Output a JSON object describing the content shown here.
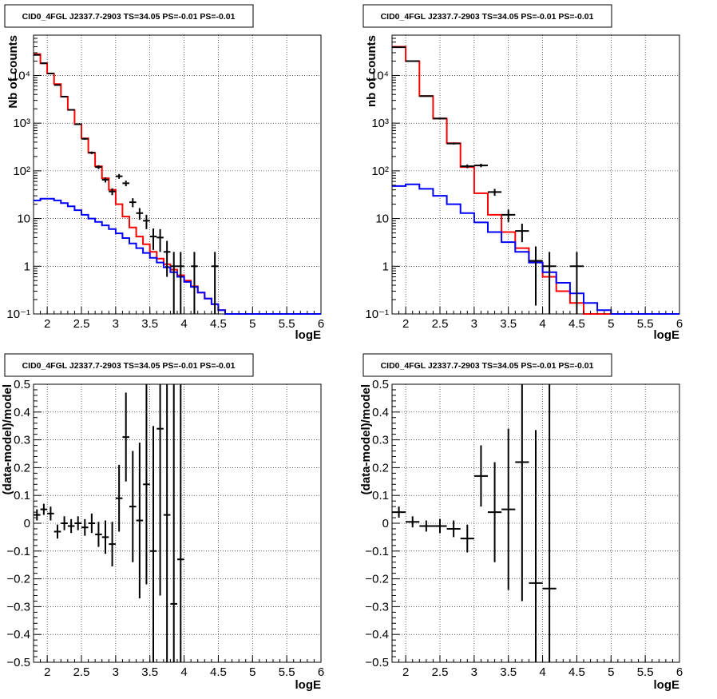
{
  "chart_data": [
    {
      "type": "histogram",
      "title": "CID0_4FGL J2337.7-2903 TS=34.05 PS=-0.01 PS=-0.01",
      "xlabel": "logE",
      "ylabel": "Nb of counts",
      "xlim": [
        1.8,
        6.0
      ],
      "ylim": [
        0.1,
        70000
      ],
      "yscale": "log",
      "grid": true,
      "x_ticks": [
        "2",
        "2.5",
        "3",
        "3.5",
        "4",
        "4.5",
        "5",
        "5.5",
        "6"
      ],
      "y_ticks": [
        "10⁻¹",
        "1",
        "10",
        "10²",
        "10³",
        "10⁴"
      ],
      "series": [
        {
          "color": "#ff0000",
          "drawstyle": "steps",
          "x_edges": [
            1.8,
            1.9,
            2.0,
            2.1,
            2.2,
            2.3,
            2.4,
            2.5,
            2.6,
            2.7,
            2.8,
            2.9,
            3.0,
            3.1,
            3.2,
            3.3,
            3.4,
            3.5,
            3.6,
            3.7,
            3.8,
            3.9,
            4.0,
            4.1,
            4.2,
            4.3,
            4.4,
            4.5,
            4.6,
            4.7,
            4.8,
            4.9,
            5.0,
            5.1,
            5.2,
            5.3,
            5.4,
            5.5,
            5.6,
            5.7,
            5.8,
            5.9,
            6.0
          ],
          "values": [
            28000,
            18000,
            11000,
            6600,
            3600,
            1900,
            950,
            480,
            240,
            125,
            70,
            40,
            20,
            11,
            6.5,
            4.2,
            2.9,
            2.0,
            1.45,
            1.1,
            0.85,
            0.65,
            0.5,
            0.38,
            0.28,
            0.21,
            0.16,
            0.12,
            0.1,
            0.1,
            0.1,
            0.1,
            0.1,
            0.1,
            0.1,
            0.1,
            0.1,
            0.1,
            0.1,
            0.1,
            0.1,
            0.1
          ]
        },
        {
          "color": "#0000ff",
          "drawstyle": "steps",
          "x_edges": [
            1.8,
            1.9,
            2.0,
            2.1,
            2.2,
            2.3,
            2.4,
            2.5,
            2.6,
            2.7,
            2.8,
            2.9,
            3.0,
            3.1,
            3.2,
            3.3,
            3.4,
            3.5,
            3.6,
            3.7,
            3.8,
            3.9,
            4.0,
            4.1,
            4.2,
            4.3,
            4.4,
            4.5,
            4.6,
            4.7,
            4.8,
            4.9,
            5.0,
            5.1,
            5.2,
            5.3,
            5.4,
            5.5,
            5.6,
            5.7,
            5.8,
            5.9,
            6.0
          ],
          "values": [
            24,
            26,
            26,
            24,
            21,
            18,
            15,
            12,
            10,
            8.5,
            7.2,
            6.0,
            4.9,
            3.9,
            3.0,
            2.4,
            1.9,
            1.5,
            1.2,
            0.95,
            0.75,
            0.6,
            0.47,
            0.37,
            0.28,
            0.21,
            0.16,
            0.12,
            0.1,
            0.1,
            0.1,
            0.1,
            0.1,
            0.1,
            0.1,
            0.1,
            0.1,
            0.1,
            0.1,
            0.1,
            0.1,
            0.1
          ]
        }
      ],
      "data_points": [
        {
          "x": 1.85,
          "y": 27000,
          "xerr": 0.05,
          "yerr": [
            164,
            164
          ]
        },
        {
          "x": 1.95,
          "y": 18000,
          "xerr": 0.05,
          "yerr": [
            134,
            134
          ]
        },
        {
          "x": 2.05,
          "y": 11000,
          "xerr": 0.05,
          "yerr": [
            105,
            105
          ]
        },
        {
          "x": 2.15,
          "y": 6300,
          "xerr": 0.05,
          "yerr": [
            79,
            79
          ]
        },
        {
          "x": 2.25,
          "y": 3600,
          "xerr": 0.05,
          "yerr": [
            60,
            60
          ]
        },
        {
          "x": 2.35,
          "y": 1900,
          "xerr": 0.05,
          "yerr": [
            44,
            44
          ]
        },
        {
          "x": 2.45,
          "y": 950,
          "xerr": 0.05,
          "yerr": [
            31,
            31
          ]
        },
        {
          "x": 2.55,
          "y": 470,
          "xerr": 0.05,
          "yerr": [
            22,
            22
          ]
        },
        {
          "x": 2.65,
          "y": 240,
          "xerr": 0.05,
          "yerr": [
            15,
            15
          ]
        },
        {
          "x": 2.75,
          "y": 120,
          "xerr": 0.05,
          "yerr": [
            11,
            11
          ]
        },
        {
          "x": 2.85,
          "y": 65,
          "xerr": 0.05,
          "yerr": [
            8,
            8
          ]
        },
        {
          "x": 2.95,
          "y": 37,
          "xerr": 0.05,
          "yerr": [
            6,
            6
          ]
        },
        {
          "x": 3.05,
          "y": 77,
          "xerr": 0.05,
          "yerr": [
            8.8,
            8.8
          ]
        },
        {
          "x": 3.15,
          "y": 55,
          "xerr": 0.05,
          "yerr": [
            7.4,
            7.4
          ]
        },
        {
          "x": 3.25,
          "y": 22,
          "xerr": 0.05,
          "yerr": [
            4.7,
            4.7
          ]
        },
        {
          "x": 3.35,
          "y": 13,
          "xerr": 0.05,
          "yerr": [
            3.6,
            3.6
          ]
        },
        {
          "x": 3.45,
          "y": 9,
          "xerr": 0.05,
          "yerr": [
            3.0,
            3.0
          ]
        },
        {
          "x": 3.55,
          "y": 4.2,
          "xerr": 0.05,
          "yerr": [
            2.0,
            2.0
          ]
        },
        {
          "x": 3.65,
          "y": 4.0,
          "xerr": 0.05,
          "yerr": [
            2.0,
            2.0
          ]
        },
        {
          "x": 3.75,
          "y": 2.0,
          "xerr": 0.05,
          "yerr": [
            1.4,
            1.4
          ]
        },
        {
          "x": 3.85,
          "y": 1.0,
          "xerr": 0.05,
          "yerr": [
            0.9,
            1.0
          ]
        },
        {
          "x": 3.95,
          "y": 1.0,
          "xerr": 0.05,
          "yerr": [
            0.9,
            1.0
          ]
        },
        {
          "x": 4.15,
          "y": 1.0,
          "xerr": 0.05,
          "yerr": [
            0.9,
            1.0
          ]
        },
        {
          "x": 4.45,
          "y": 1.0,
          "xerr": 0.05,
          "yerr": [
            0.9,
            1.0
          ]
        }
      ]
    },
    {
      "type": "histogram",
      "title": "CID0_4FGL J2337.7-2903 TS=34.05 PS=-0.01 PS=-0.01",
      "xlabel": "logE",
      "ylabel": "nb of counts",
      "xlim": [
        1.8,
        6.0
      ],
      "ylim": [
        0.1,
        70000
      ],
      "yscale": "log",
      "grid": true,
      "x_ticks": [
        "2",
        "2.5",
        "3",
        "3.5",
        "4",
        "4.5",
        "5",
        "5.5",
        "6"
      ],
      "y_ticks": [
        "10⁻¹",
        "1",
        "10",
        "10²",
        "10³",
        "10⁴"
      ],
      "series": [
        {
          "color": "#ff0000",
          "drawstyle": "steps",
          "x_edges": [
            1.8,
            2.0,
            2.2,
            2.4,
            2.6,
            2.8,
            3.0,
            3.2,
            3.4,
            3.6,
            3.8,
            4.0,
            4.2,
            4.4,
            4.6,
            4.8,
            5.0,
            5.2,
            5.4,
            5.6,
            5.8,
            6.0
          ],
          "values": [
            40000,
            20000,
            3700,
            1250,
            380,
            120,
            34,
            12,
            5.2,
            2.4,
            1.2,
            0.6,
            0.3,
            0.17,
            0.1,
            0.1,
            0.1,
            0.1,
            0.1,
            0.1,
            0.1
          ]
        },
        {
          "color": "#0000ff",
          "drawstyle": "steps",
          "x_edges": [
            1.8,
            2.0,
            2.2,
            2.4,
            2.6,
            2.8,
            3.0,
            3.2,
            3.4,
            3.6,
            3.8,
            4.0,
            4.2,
            4.4,
            4.6,
            4.8,
            5.0,
            5.2,
            5.4,
            5.6,
            5.8,
            6.0
          ],
          "values": [
            48,
            52,
            42,
            30,
            20,
            13,
            8.3,
            5.2,
            3.2,
            2.0,
            1.2,
            0.75,
            0.45,
            0.27,
            0.17,
            0.12,
            0.1,
            0.1,
            0.1,
            0.1,
            0.1
          ]
        }
      ],
      "data_points": [
        {
          "x": 1.9,
          "y": 39000,
          "xerr": 0.1,
          "yerr": [
            200,
            200
          ]
        },
        {
          "x": 2.1,
          "y": 20000,
          "xerr": 0.1,
          "yerr": [
            140,
            140
          ]
        },
        {
          "x": 2.3,
          "y": 3700,
          "xerr": 0.1,
          "yerr": [
            60,
            60
          ]
        },
        {
          "x": 2.5,
          "y": 1250,
          "xerr": 0.1,
          "yerr": [
            35,
            35
          ]
        },
        {
          "x": 2.7,
          "y": 375,
          "xerr": 0.1,
          "yerr": [
            19,
            19
          ]
        },
        {
          "x": 2.9,
          "y": 125,
          "xerr": 0.1,
          "yerr": [
            11,
            11
          ]
        },
        {
          "x": 3.1,
          "y": 130,
          "xerr": 0.1,
          "yerr": [
            11,
            11
          ]
        },
        {
          "x": 3.3,
          "y": 36,
          "xerr": 0.1,
          "yerr": [
            6,
            6
          ]
        },
        {
          "x": 3.5,
          "y": 12,
          "xerr": 0.1,
          "yerr": [
            3.5,
            3.5
          ]
        },
        {
          "x": 3.7,
          "y": 5.5,
          "xerr": 0.1,
          "yerr": [
            2.3,
            2.3
          ]
        },
        {
          "x": 3.9,
          "y": 1.3,
          "xerr": 0.1,
          "yerr": [
            1.15,
            1.3
          ]
        },
        {
          "x": 4.1,
          "y": 1.0,
          "xerr": 0.1,
          "yerr": [
            0.9,
            1.0
          ]
        },
        {
          "x": 4.5,
          "y": 1.0,
          "xerr": 0.1,
          "yerr": [
            0.9,
            1.0
          ]
        }
      ]
    },
    {
      "type": "scatter",
      "title": "CID0_4FGL J2337.7-2903 TS=34.05 PS=-0.01 PS=-0.01",
      "xlabel": "logE",
      "ylabel": "(data-model)/model",
      "xlim": [
        1.8,
        6.0
      ],
      "ylim": [
        -0.5,
        0.5
      ],
      "grid": true,
      "x_ticks": [
        "2",
        "2.5",
        "3",
        "3.5",
        "4",
        "4.5",
        "5",
        "5.5",
        "6"
      ],
      "y_ticks": [
        "−0.5",
        "−0.4",
        "−0.3",
        "−0.2",
        "−0.1",
        "0",
        "0.1",
        "0.2",
        "0.3",
        "0.4",
        "0.5"
      ],
      "points": [
        {
          "x": 1.85,
          "y": 0.03,
          "xerr": 0.05,
          "yerr": 0.02
        },
        {
          "x": 1.95,
          "y": 0.05,
          "xerr": 0.05,
          "yerr": 0.02
        },
        {
          "x": 2.05,
          "y": 0.035,
          "xerr": 0.05,
          "yerr": 0.025
        },
        {
          "x": 2.15,
          "y": -0.03,
          "xerr": 0.05,
          "yerr": 0.025
        },
        {
          "x": 2.25,
          "y": 0.0,
          "xerr": 0.05,
          "yerr": 0.025
        },
        {
          "x": 2.35,
          "y": -0.01,
          "xerr": 0.05,
          "yerr": 0.025
        },
        {
          "x": 2.45,
          "y": 0.0,
          "xerr": 0.05,
          "yerr": 0.025
        },
        {
          "x": 2.55,
          "y": -0.015,
          "xerr": 0.05,
          "yerr": 0.03
        },
        {
          "x": 2.65,
          "y": 0.0,
          "xerr": 0.05,
          "yerr": 0.035
        },
        {
          "x": 2.75,
          "y": -0.04,
          "xerr": 0.05,
          "yerr": 0.045
        },
        {
          "x": 2.85,
          "y": -0.05,
          "xerr": 0.05,
          "yerr": 0.06
        },
        {
          "x": 2.95,
          "y": -0.075,
          "xerr": 0.05,
          "yerr": 0.08
        },
        {
          "x": 3.05,
          "y": 0.09,
          "xerr": 0.05,
          "yerr": 0.12
        },
        {
          "x": 3.15,
          "y": 0.31,
          "xerr": 0.05,
          "yerr": 0.16
        },
        {
          "x": 3.25,
          "y": 0.06,
          "xerr": 0.05,
          "yerr": 0.2
        },
        {
          "x": 3.35,
          "y": 0.01,
          "xerr": 0.05,
          "yerr": 0.28
        },
        {
          "x": 3.45,
          "y": 0.14,
          "xerr": 0.05,
          "yerr": 0.36
        },
        {
          "x": 3.55,
          "y": -0.1,
          "xerr": 0.05,
          "yerr": 0.45
        },
        {
          "x": 3.65,
          "y": 0.34,
          "xerr": 0.05,
          "yerr": 0.6
        },
        {
          "x": 3.75,
          "y": 0.03,
          "xerr": 0.05,
          "yerr": 0.7
        },
        {
          "x": 3.85,
          "y": -0.29,
          "xerr": 0.05,
          "yerr": 0.8
        },
        {
          "x": 3.95,
          "y": -0.13,
          "xerr": 0.05,
          "yerr": 0.9
        }
      ]
    },
    {
      "type": "scatter",
      "title": "CID0_4FGL J2337.7-2903 TS=34.05 PS=-0.01 PS=-0.01",
      "xlabel": "logE",
      "ylabel": "(data-model)/model",
      "xlim": [
        1.8,
        6.0
      ],
      "ylim": [
        -0.5,
        0.5
      ],
      "grid": true,
      "x_ticks": [
        "2",
        "2.5",
        "3",
        "3.5",
        "4",
        "4.5",
        "5",
        "5.5",
        "6"
      ],
      "y_ticks": [
        "−0.5",
        "−0.4",
        "−0.3",
        "−0.2",
        "−0.1",
        "0",
        "0.1",
        "0.2",
        "0.3",
        "0.4",
        "0.5"
      ],
      "points": [
        {
          "x": 1.9,
          "y": 0.04,
          "xerr": 0.1,
          "yerr": 0.02
        },
        {
          "x": 2.1,
          "y": 0.005,
          "xerr": 0.1,
          "yerr": 0.02
        },
        {
          "x": 2.3,
          "y": -0.01,
          "xerr": 0.1,
          "yerr": 0.02
        },
        {
          "x": 2.5,
          "y": -0.01,
          "xerr": 0.1,
          "yerr": 0.025
        },
        {
          "x": 2.7,
          "y": -0.02,
          "xerr": 0.1,
          "yerr": 0.03
        },
        {
          "x": 2.9,
          "y": -0.055,
          "xerr": 0.1,
          "yerr": 0.05
        },
        {
          "x": 3.1,
          "y": 0.17,
          "xerr": 0.1,
          "yerr": 0.11
        },
        {
          "x": 3.3,
          "y": 0.04,
          "xerr": 0.1,
          "yerr": 0.18
        },
        {
          "x": 3.5,
          "y": 0.05,
          "xerr": 0.1,
          "yerr": 0.29
        },
        {
          "x": 3.7,
          "y": 0.22,
          "xerr": 0.1,
          "yerr": 0.5
        },
        {
          "x": 3.9,
          "y": -0.215,
          "xerr": 0.1,
          "yerr": 0.55
        },
        {
          "x": 4.1,
          "y": -0.235,
          "xerr": 0.1,
          "yerr": 0.9
        }
      ]
    }
  ]
}
